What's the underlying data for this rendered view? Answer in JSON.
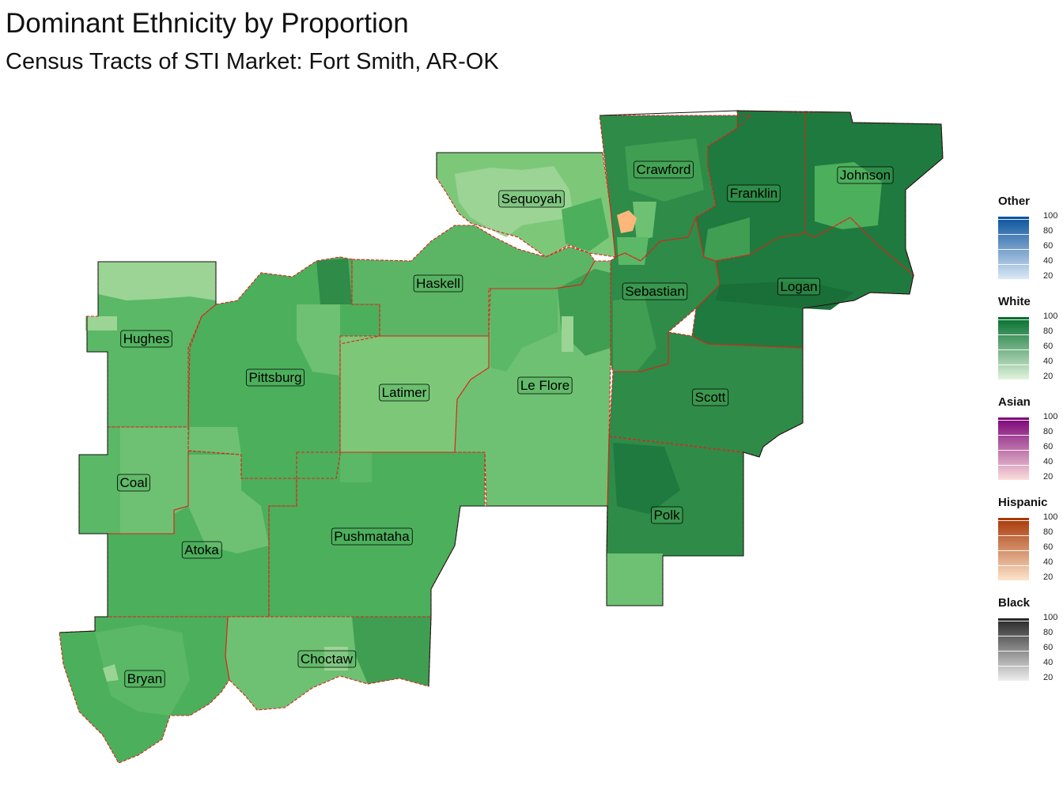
{
  "title": "Dominant Ethnicity by Proportion",
  "subtitle": "Census Tracts of STI Market: Fort Smith, AR-OK",
  "counties": [
    {
      "name": "Sequoyah"
    },
    {
      "name": "Crawford"
    },
    {
      "name": "Franklin"
    },
    {
      "name": "Johnson"
    },
    {
      "name": "Haskell"
    },
    {
      "name": "Hughes"
    },
    {
      "name": "Pittsburg"
    },
    {
      "name": "Sebastian"
    },
    {
      "name": "Logan"
    },
    {
      "name": "Latimer"
    },
    {
      "name": "Le Flore"
    },
    {
      "name": "Scott"
    },
    {
      "name": "Coal"
    },
    {
      "name": "Polk"
    },
    {
      "name": "Atoka"
    },
    {
      "name": "Pushmataha"
    },
    {
      "name": "Choctaw"
    },
    {
      "name": "Bryan"
    }
  ],
  "legend": [
    {
      "name": "Other",
      "color_low": "#deebf7",
      "color_high": "#08519c",
      "ticks": [
        "100",
        "80",
        "60",
        "40",
        "20"
      ]
    },
    {
      "name": "White",
      "color_low": "#e5f5e0",
      "color_high": "#006d2c",
      "ticks": [
        "100",
        "80",
        "60",
        "40",
        "20"
      ]
    },
    {
      "name": "Asian",
      "color_low": "#fde0dd",
      "color_high": "#7a0177",
      "ticks": [
        "100",
        "80",
        "60",
        "40",
        "20"
      ]
    },
    {
      "name": "Hispanic",
      "color_low": "#fee6ce",
      "color_high": "#a63603",
      "ticks": [
        "100",
        "80",
        "60",
        "40",
        "20"
      ]
    },
    {
      "name": "Black",
      "color_low": "#f0f0f0",
      "color_high": "#252525",
      "ticks": [
        "100",
        "80",
        "60",
        "40",
        "20"
      ]
    }
  ],
  "colors": {
    "white_light": "#9bd495",
    "white_mid": "#6cc070",
    "white_base": "#4caf5c",
    "white_dark": "#2e8b48",
    "white_darkest": "#1e7a3e",
    "hispanic_tract": "#fdb77a",
    "county_border": "#e0201b",
    "outline": "#111111"
  }
}
